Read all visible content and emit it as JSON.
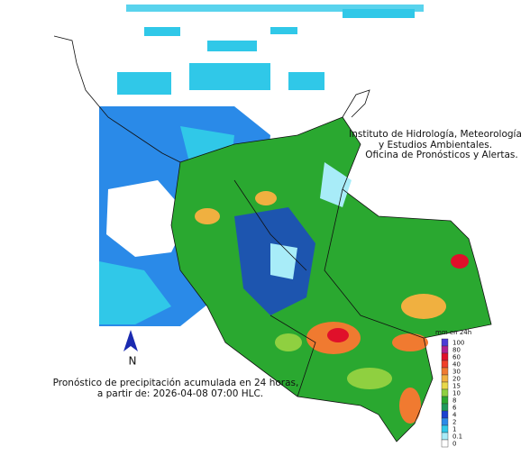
{
  "header": {
    "lines": [
      "Instituto de Hidrología, Meteorología",
      "y Estudios Ambientales.",
      "Oficina de Pronósticos y Alertas."
    ]
  },
  "caption": {
    "lines": [
      "Pronóstico de precipitación acumulada en 24 horas,",
      "a partir de: 2026-04-08 07:00 HLC."
    ]
  },
  "north": "N",
  "legend": {
    "title": "mm en 24h",
    "items": [
      {
        "value": 100,
        "color": "#4b3bd6"
      },
      {
        "value": 80,
        "color": "#b0208f"
      },
      {
        "value": 60,
        "color": "#e0102a"
      },
      {
        "value": 40,
        "color": "#f0402a"
      },
      {
        "value": 30,
        "color": "#f07a30"
      },
      {
        "value": 20,
        "color": "#f0b040"
      },
      {
        "value": 15,
        "color": "#e8d84a"
      },
      {
        "value": 10,
        "color": "#8fd040"
      },
      {
        "value": 8,
        "color": "#2aa830"
      },
      {
        "value": 6,
        "color": "#1e9a5a"
      },
      {
        "value": 4,
        "color": "#1a40d0"
      },
      {
        "value": 2,
        "color": "#2a8ae8"
      },
      {
        "value": 1,
        "color": "#30c8e8"
      },
      {
        "value": 0.1,
        "color": "#a8ecf8"
      },
      {
        "value": 0,
        "color": "#ffffff"
      }
    ]
  }
}
